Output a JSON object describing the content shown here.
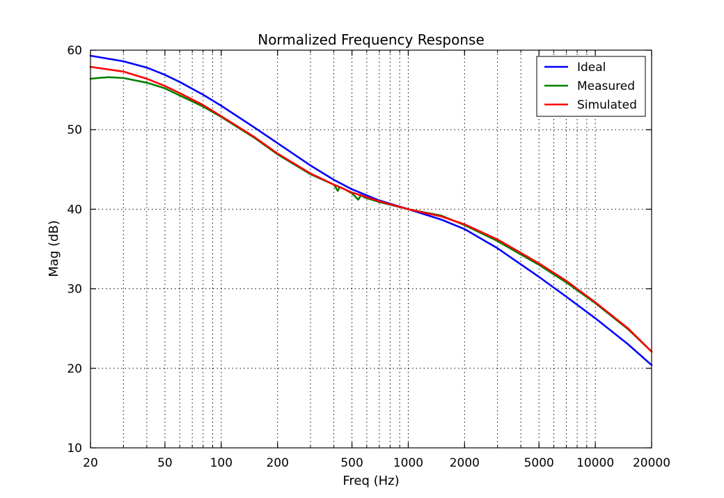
{
  "chart_data": {
    "type": "line",
    "title": "Normalized Frequency Response",
    "xlabel": "Freq (Hz)",
    "ylabel": "Mag (dB)",
    "xscale": "log",
    "xlim": [
      20,
      20000
    ],
    "ylim": [
      10,
      60
    ],
    "xticks": [
      {
        "value": 20,
        "label": "20"
      },
      {
        "value": 50,
        "label": "50"
      },
      {
        "value": 100,
        "label": "100"
      },
      {
        "value": 200,
        "label": "200"
      },
      {
        "value": 500,
        "label": "500"
      },
      {
        "value": 1000,
        "label": "1000"
      },
      {
        "value": 2000,
        "label": "2000"
      },
      {
        "value": 5000,
        "label": "5000"
      },
      {
        "value": 10000,
        "label": "10000"
      },
      {
        "value": 20000,
        "label": "20000"
      }
    ],
    "yticks": [
      {
        "value": 10,
        "label": "10"
      },
      {
        "value": 20,
        "label": "20"
      },
      {
        "value": 30,
        "label": "30"
      },
      {
        "value": 40,
        "label": "40"
      },
      {
        "value": 50,
        "label": "50"
      },
      {
        "value": 60,
        "label": "60"
      }
    ],
    "grid": true,
    "legend_position": "top-right",
    "series": [
      {
        "name": "Ideal",
        "color": "#0000ff",
        "x": [
          20,
          30,
          40,
          50,
          60,
          80,
          100,
          150,
          200,
          300,
          400,
          500,
          700,
          1000,
          1500,
          2000,
          3000,
          5000,
          7000,
          10000,
          15000,
          20000
        ],
        "y": [
          59.3,
          58.6,
          57.8,
          56.9,
          56.0,
          54.4,
          53.0,
          50.3,
          48.3,
          45.5,
          43.7,
          42.5,
          41.1,
          40.0,
          38.7,
          37.5,
          35.1,
          31.5,
          29.0,
          26.3,
          23.0,
          20.4
        ]
      },
      {
        "name": "Measured",
        "color": "#008000",
        "x": [
          20,
          22,
          25,
          30,
          40,
          50,
          60,
          80,
          100,
          150,
          200,
          300,
          400,
          420,
          430,
          450,
          500,
          540,
          560,
          580,
          700,
          1000,
          1500,
          2000,
          3000,
          5000,
          7000,
          10000,
          15000,
          20000
        ],
        "y": [
          56.4,
          56.5,
          56.6,
          56.5,
          55.9,
          55.2,
          54.3,
          52.9,
          51.6,
          49.0,
          46.9,
          44.4,
          43.1,
          42.3,
          42.8,
          42.6,
          42.0,
          41.2,
          41.8,
          41.5,
          40.9,
          40.0,
          39.2,
          38.0,
          36.0,
          33.0,
          30.8,
          28.2,
          24.9,
          22.1
        ]
      },
      {
        "name": "Simulated",
        "color": "#ff0000",
        "x": [
          20,
          30,
          40,
          50,
          60,
          80,
          100,
          150,
          200,
          300,
          400,
          500,
          700,
          1000,
          1500,
          2000,
          3000,
          5000,
          7000,
          10000,
          15000,
          20000
        ],
        "y": [
          57.9,
          57.3,
          56.4,
          55.5,
          54.6,
          53.1,
          51.7,
          49.1,
          47.0,
          44.5,
          43.1,
          42.1,
          41.0,
          40.0,
          39.1,
          38.1,
          36.2,
          33.2,
          31.0,
          28.3,
          25.0,
          22.1
        ]
      }
    ]
  }
}
